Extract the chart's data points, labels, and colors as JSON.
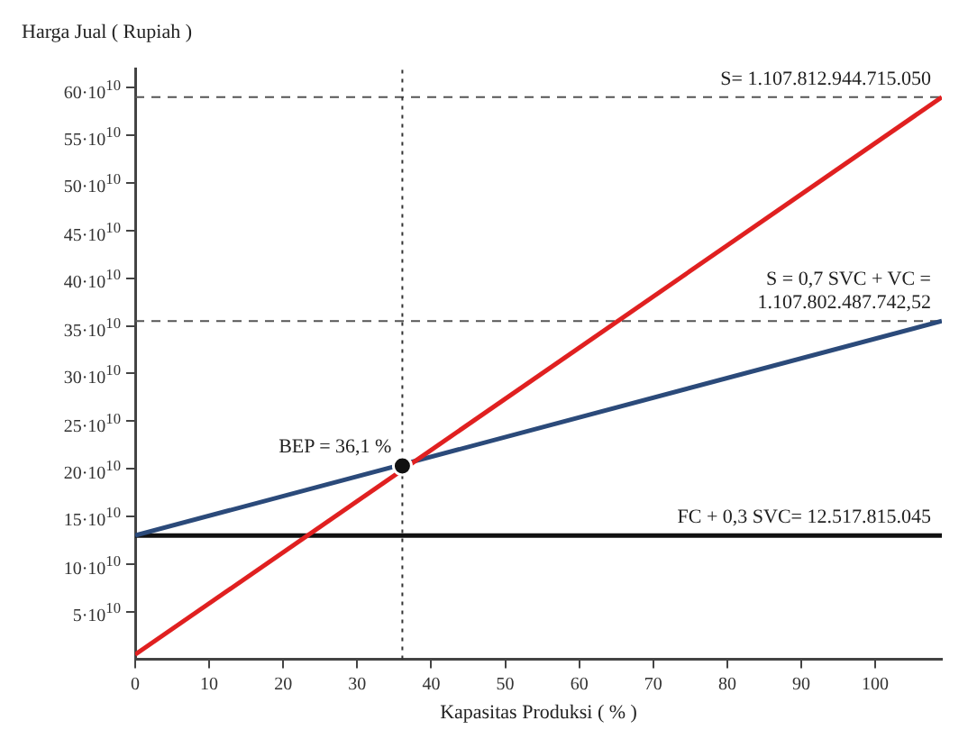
{
  "chart_data": {
    "type": "line",
    "xlabel": "Kapasitas Produksi ( % )",
    "ylabel": "Harga Jual ( Rupiah )",
    "xlim": [
      0,
      109
    ],
    "xticks": [
      0,
      10,
      20,
      30,
      40,
      50,
      60,
      70,
      80,
      90,
      100
    ],
    "ylim": [
      0,
      620000000000
    ],
    "yticks": [
      {
        "value": 50000000000,
        "label": "5·10$^{10}$"
      },
      {
        "value": 100000000000,
        "label": "10·10$^{10}$"
      },
      {
        "value": 150000000000,
        "label": "15·10$^{10}$"
      },
      {
        "value": 200000000000,
        "label": "20·10$^{10}$"
      },
      {
        "value": 250000000000,
        "label": "25·10$^{10}$"
      },
      {
        "value": 300000000000,
        "label": "30·10$^{10}$"
      },
      {
        "value": 350000000000,
        "label": "35·10$^{10}$"
      },
      {
        "value": 400000000000,
        "label": "40·10$^{10}$"
      },
      {
        "value": 450000000000,
        "label": "45·10$^{10}$"
      },
      {
        "value": 500000000000,
        "label": "50·10$^{10}$"
      },
      {
        "value": 550000000000,
        "label": "55·10$^{10}$"
      },
      {
        "value": 600000000000,
        "label": "60·10$^{10}$"
      }
    ],
    "series": [
      {
        "color": "#e02020",
        "x": [
          0,
          109
        ],
        "values": [
          5000000000,
          590000000000
        ]
      },
      {
        "color": "#2b4a7a",
        "x": [
          0,
          109
        ],
        "values": [
          130000000000,
          355000000000
        ]
      },
      {
        "color": "#111111",
        "x": [
          0,
          109
        ],
        "values": [
          130000000000,
          130000000000
        ]
      },
      {
        "type": "scatter",
        "color": "#111111",
        "x": [
          36.1
        ],
        "values": [
          203000000000
        ],
        "marker": "circle"
      }
    ],
    "ref_lines": [
      {
        "axis": "y",
        "value": 590000000000,
        "line_style": "dashed",
        "color": "#555555"
      },
      {
        "axis": "y",
        "value": 355000000000,
        "line_style": "dashed",
        "color": "#555555"
      },
      {
        "axis": "x",
        "value": 36.1,
        "line_style": "dotted",
        "color": "#333333"
      }
    ],
    "annotations": [
      {
        "text": "S= 1.107.812.944.715.050",
        "y": 590000000000
      },
      {
        "text": "S = 0,7 SVC + VC =\n1.107.802.487.742,52",
        "y": 355000000000
      },
      {
        "text": "BEP = 36,1 %",
        "x": 36.1,
        "y": 203000000000
      },
      {
        "text": "FC + 0,3 SVC= 12.517.815.045",
        "y": 130000000000
      }
    ],
    "grid": false,
    "legend": false,
    "marker": "none",
    "line_style": "solid"
  }
}
